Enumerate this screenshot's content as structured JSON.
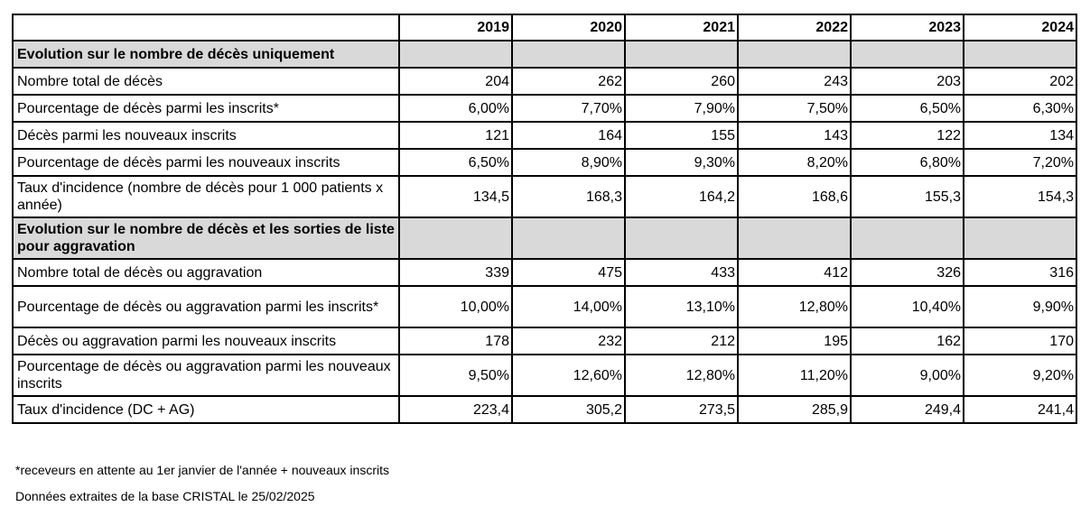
{
  "table": {
    "years": [
      "2019",
      "2020",
      "2021",
      "2022",
      "2023",
      "2024"
    ],
    "sections": [
      {
        "title": "Evolution sur le nombre de décès uniquement",
        "rows": [
          {
            "label": "Nombre total de décès",
            "values": [
              "204",
              "262",
              "260",
              "243",
              "203",
              "202"
            ]
          },
          {
            "label": "Pourcentage de décès parmi les inscrits*",
            "values": [
              "6,00%",
              "7,70%",
              "7,90%",
              "7,50%",
              "6,50%",
              "6,30%"
            ]
          },
          {
            "label": "Décès parmi les nouveaux inscrits",
            "values": [
              "121",
              "164",
              "155",
              "143",
              "122",
              "134"
            ]
          },
          {
            "label": "Pourcentage de décès parmi les nouveaux inscrits",
            "values": [
              "6,50%",
              "8,90%",
              "9,30%",
              "8,20%",
              "6,80%",
              "7,20%"
            ]
          },
          {
            "label": "Taux d'incidence (nombre de décès pour 1 000 patients x année)",
            "values": [
              "134,5",
              "168,3",
              "164,2",
              "168,6",
              "155,3",
              "154,3"
            ]
          }
        ]
      },
      {
        "title": "Evolution sur le nombre de décès et les sorties de liste pour aggravation",
        "rows": [
          {
            "label": "Nombre total de décès ou aggravation",
            "values": [
              "339",
              "475",
              "433",
              "412",
              "326",
              "316"
            ]
          },
          {
            "label": "Pourcentage de décès ou aggravation parmi les inscrits*",
            "values": [
              "10,00%",
              "14,00%",
              "13,10%",
              "12,80%",
              "10,40%",
              "9,90%"
            ]
          },
          {
            "label": "Décès ou aggravation parmi les nouveaux inscrits",
            "values": [
              "178",
              "232",
              "212",
              "195",
              "162",
              "170"
            ]
          },
          {
            "label": "Pourcentage de décès ou aggravation parmi les nouveaux inscrits",
            "values": [
              "9,50%",
              "12,60%",
              "12,80%",
              "11,20%",
              "9,00%",
              "9,20%"
            ]
          },
          {
            "label": "Taux d'incidence (DC + AG)",
            "values": [
              "223,4",
              "305,2",
              "273,5",
              "285,9",
              "249,4",
              "241,4"
            ]
          }
        ]
      }
    ]
  },
  "footnotes": {
    "asterisk": "*receveurs en attente au 1er janvier de l'année + nouveaux inscrits",
    "source": "Données extraites de la base CRISTAL le 25/02/2025"
  }
}
